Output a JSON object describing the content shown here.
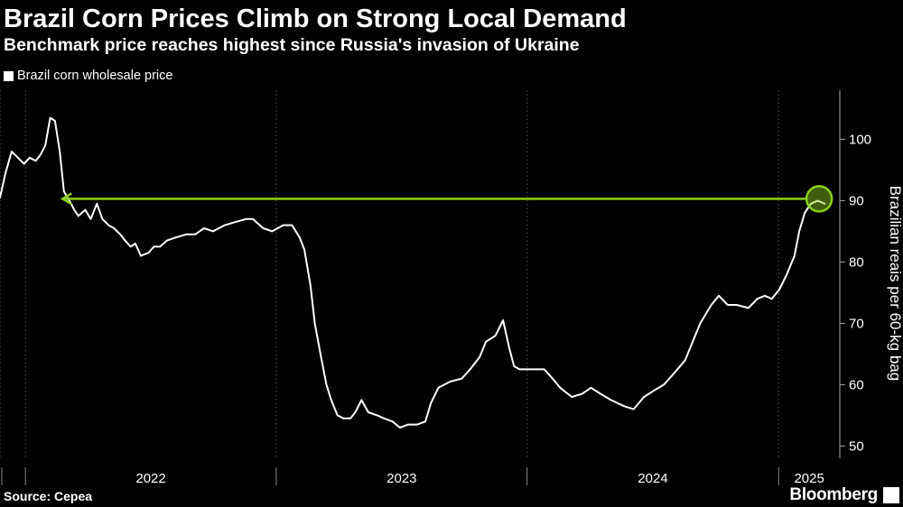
{
  "header": {
    "title": "Brazil Corn Prices Climb on Strong Local Demand",
    "subtitle": "Benchmark price reaches highest since Russia's invasion of Ukraine"
  },
  "footer": {
    "source": "Source: Cepea",
    "brand": "Bloomberg"
  },
  "colors": {
    "background": "#000000",
    "line": "#ffffff",
    "annotation": "#8ccf1a",
    "grid": "#555555"
  },
  "chart_data": {
    "type": "line",
    "title": "Brazil Corn Prices Climb on Strong Local Demand",
    "subtitle": "Benchmark price reaches highest since Russia's invasion of Ukraine",
    "ylabel": "Brazilian reais per 60-kg bag",
    "xlabel": "",
    "ylim": [
      48,
      108
    ],
    "yticks": [
      50,
      60,
      70,
      80,
      90,
      100
    ],
    "xlim": [
      "2021-11-25",
      "2025-03-31"
    ],
    "xticks": [
      "2022",
      "2023",
      "2024",
      "2025"
    ],
    "grid": "vertical",
    "y_axis_side": "right",
    "legend_position": "top-left",
    "series": [
      {
        "name": "Brazil corn wholesale price",
        "color": "#ffffff",
        "points": [
          [
            "2021-11-25",
            90.5
          ],
          [
            "2021-12-03",
            94.5
          ],
          [
            "2021-12-12",
            98.0
          ],
          [
            "2021-12-21",
            97.0
          ],
          [
            "2021-12-30",
            96.0
          ],
          [
            "2022-01-07",
            97.0
          ],
          [
            "2022-01-16",
            96.5
          ],
          [
            "2022-01-23",
            97.5
          ],
          [
            "2022-01-30",
            99.0
          ],
          [
            "2022-02-06",
            103.5
          ],
          [
            "2022-02-13",
            103.0
          ],
          [
            "2022-02-20",
            98.0
          ],
          [
            "2022-02-26",
            91.5
          ],
          [
            "2022-03-06",
            90.0
          ],
          [
            "2022-03-13",
            88.5
          ],
          [
            "2022-03-19",
            87.5
          ],
          [
            "2022-03-29",
            88.5
          ],
          [
            "2022-04-06",
            87.0
          ],
          [
            "2022-04-15",
            89.5
          ],
          [
            "2022-04-23",
            87.0
          ],
          [
            "2022-05-02",
            86.0
          ],
          [
            "2022-05-10",
            85.5
          ],
          [
            "2022-05-19",
            84.5
          ],
          [
            "2022-05-26",
            83.5
          ],
          [
            "2022-06-03",
            82.5
          ],
          [
            "2022-06-10",
            83.0
          ],
          [
            "2022-06-18",
            81.0
          ],
          [
            "2022-06-29",
            81.5
          ],
          [
            "2022-07-07",
            82.5
          ],
          [
            "2022-07-16",
            82.5
          ],
          [
            "2022-07-26",
            83.5
          ],
          [
            "2022-08-08",
            84.0
          ],
          [
            "2022-08-23",
            84.5
          ],
          [
            "2022-09-05",
            84.5
          ],
          [
            "2022-09-18",
            85.5
          ],
          [
            "2022-10-01",
            85.0
          ],
          [
            "2022-10-18",
            86.0
          ],
          [
            "2022-11-02",
            86.5
          ],
          [
            "2022-11-18",
            87.0
          ],
          [
            "2022-11-28",
            87.0
          ],
          [
            "2022-12-03",
            86.5
          ],
          [
            "2022-12-13",
            85.5
          ],
          [
            "2022-12-26",
            85.0
          ],
          [
            "2023-01-11",
            86.0
          ],
          [
            "2023-01-24",
            86.0
          ],
          [
            "2023-02-04",
            84.0
          ],
          [
            "2023-02-11",
            82.0
          ],
          [
            "2023-02-20",
            76.0
          ],
          [
            "2023-02-26",
            70.0
          ],
          [
            "2023-03-08",
            64.0
          ],
          [
            "2023-03-15",
            60.0
          ],
          [
            "2023-03-22",
            57.5
          ],
          [
            "2023-03-31",
            55.0
          ],
          [
            "2023-04-09",
            54.5
          ],
          [
            "2023-04-19",
            54.5
          ],
          [
            "2023-04-26",
            55.5
          ],
          [
            "2023-05-05",
            57.5
          ],
          [
            "2023-05-15",
            55.5
          ],
          [
            "2023-05-28",
            55.0
          ],
          [
            "2023-06-07",
            54.5
          ],
          [
            "2023-06-19",
            54.0
          ],
          [
            "2023-06-30",
            53.0
          ],
          [
            "2023-07-12",
            53.5
          ],
          [
            "2023-07-25",
            53.5
          ],
          [
            "2023-08-06",
            54.0
          ],
          [
            "2023-08-14",
            57.0
          ],
          [
            "2023-08-25",
            59.5
          ],
          [
            "2023-09-11",
            60.5
          ],
          [
            "2023-09-28",
            61.0
          ],
          [
            "2023-10-10",
            62.5
          ],
          [
            "2023-10-24",
            64.5
          ],
          [
            "2023-11-02",
            67.0
          ],
          [
            "2023-11-16",
            68.0
          ],
          [
            "2023-11-27",
            70.5
          ],
          [
            "2023-12-06",
            66.0
          ],
          [
            "2023-12-13",
            63.0
          ],
          [
            "2023-12-21",
            62.5
          ],
          [
            "2024-01-09",
            62.5
          ],
          [
            "2024-01-26",
            62.5
          ],
          [
            "2024-02-07",
            61.0
          ],
          [
            "2024-02-18",
            59.5
          ],
          [
            "2024-03-06",
            58.0
          ],
          [
            "2024-03-21",
            58.5
          ],
          [
            "2024-04-03",
            59.5
          ],
          [
            "2024-04-17",
            58.5
          ],
          [
            "2024-05-02",
            57.5
          ],
          [
            "2024-05-21",
            56.5
          ],
          [
            "2024-06-04",
            56.0
          ],
          [
            "2024-06-19",
            58.0
          ],
          [
            "2024-07-03",
            59.0
          ],
          [
            "2024-07-18",
            60.0
          ],
          [
            "2024-08-03",
            62.0
          ],
          [
            "2024-08-18",
            64.0
          ],
          [
            "2024-08-29",
            67.0
          ],
          [
            "2024-09-09",
            70.0
          ],
          [
            "2024-09-25",
            73.0
          ],
          [
            "2024-10-06",
            74.5
          ],
          [
            "2024-10-19",
            73.0
          ],
          [
            "2024-11-01",
            73.0
          ],
          [
            "2024-11-18",
            72.5
          ],
          [
            "2024-12-01",
            74.0
          ],
          [
            "2024-12-12",
            74.5
          ],
          [
            "2024-12-22",
            74.0
          ],
          [
            "2025-01-02",
            75.5
          ],
          [
            "2025-01-13",
            78.0
          ],
          [
            "2025-01-24",
            81.0
          ],
          [
            "2025-01-31",
            85.0
          ],
          [
            "2025-02-08",
            88.0
          ],
          [
            "2025-02-17",
            89.5
          ],
          [
            "2025-02-27",
            90.0
          ],
          [
            "2025-03-09",
            89.5
          ]
        ]
      }
    ],
    "annotations": [
      {
        "type": "arrow",
        "color": "#8ccf1a",
        "from": [
          "2025-03-01",
          90.3
        ],
        "to": [
          "2022-02-24",
          90.3
        ]
      },
      {
        "type": "circle",
        "color": "#8ccf1a",
        "at": [
          "2025-03-01",
          90.3
        ]
      }
    ]
  }
}
